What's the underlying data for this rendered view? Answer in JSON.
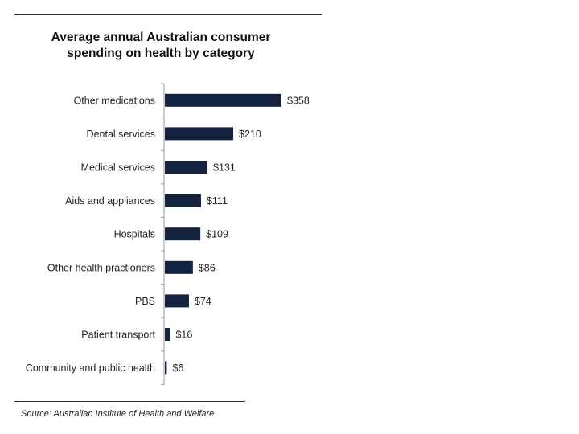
{
  "chart_data": {
    "type": "bar",
    "orientation": "horizontal",
    "title": "Average annual Australian consumer spending on health by category",
    "title_lines": [
      "Average annual Australian consumer",
      "spending on health by category"
    ],
    "categories": [
      "Other medications",
      "Dental services",
      "Medical services",
      "Aids and appliances",
      "Hospitals",
      "Other health practioners",
      "PBS",
      "Patient transport",
      "Community and public health"
    ],
    "values": [
      358,
      210,
      131,
      111,
      109,
      86,
      74,
      16,
      6
    ],
    "data_labels": [
      "$358",
      "$210",
      "$131",
      "$111",
      "$109",
      "$86",
      "$74",
      "$16",
      "$6"
    ],
    "xlabel": "",
    "ylabel": "",
    "xlim": [
      0,
      358
    ],
    "grid": false,
    "bar_color": "#13233f",
    "source": "Source: Australian Institute of Health and Welfare"
  }
}
